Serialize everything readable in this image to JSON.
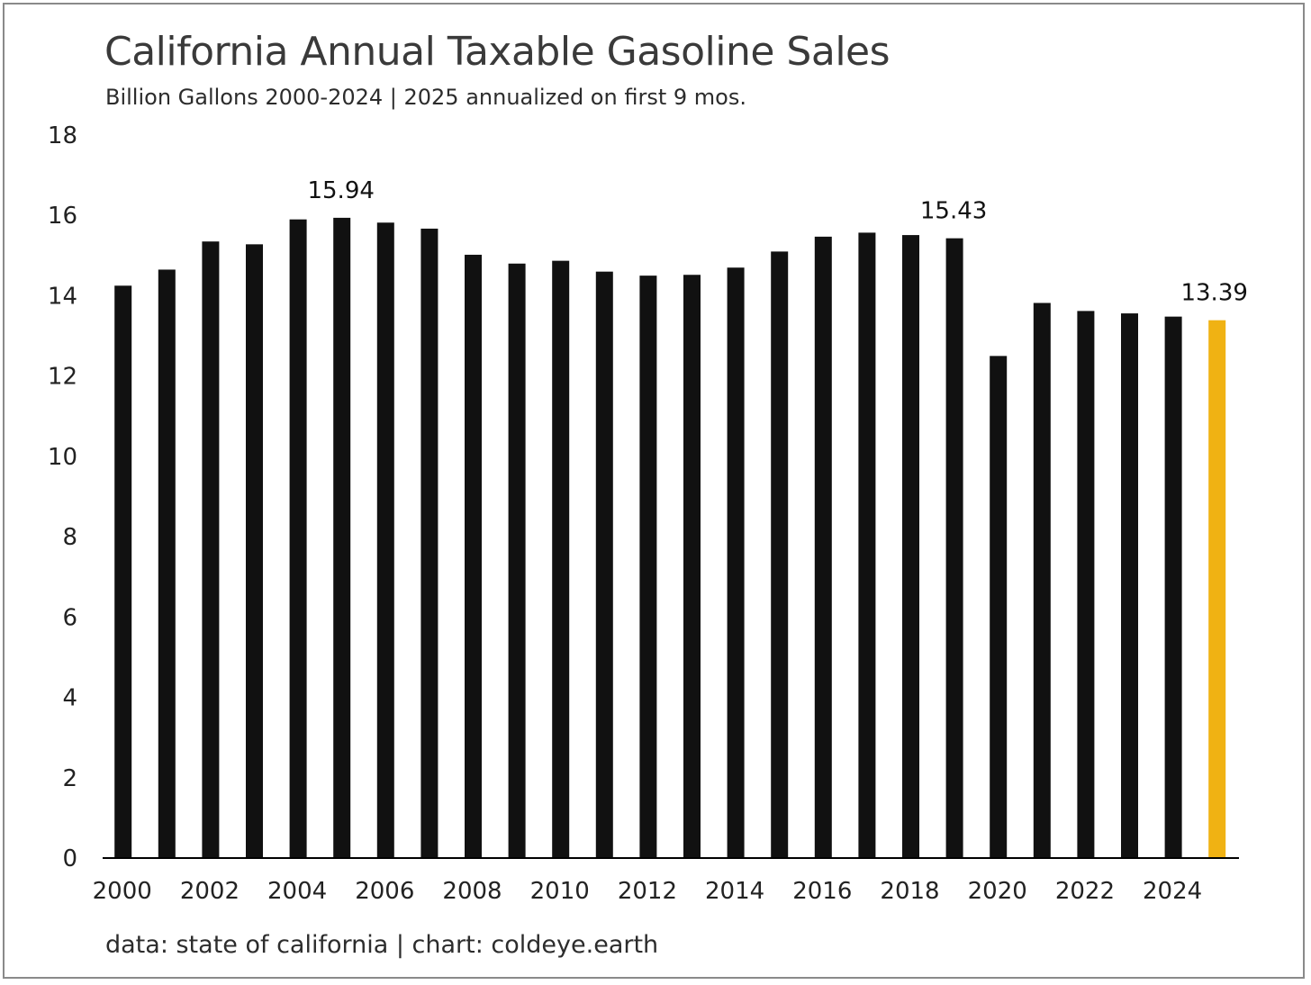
{
  "title": "California Annual Taxable Gasoline Sales",
  "subtitle": "Billion Gallons 2000-2024 | 2025 annualized on first 9 mos.",
  "footer": "data: state of california | chart: coldeye.earth",
  "colors": {
    "bar": "#111111",
    "highlight": "#f0b213",
    "axis": "#000000"
  },
  "chart_data": {
    "type": "bar",
    "title": "California Annual Taxable Gasoline Sales",
    "subtitle": "Billion Gallons 2000-2024 | 2025 annualized on first 9 mos.",
    "xlabel": "",
    "ylabel": "",
    "ylim": [
      0,
      18
    ],
    "yticks": [
      0,
      2,
      4,
      6,
      8,
      10,
      12,
      14,
      16,
      18
    ],
    "grid": false,
    "categories": [
      "2000",
      "2001",
      "2002",
      "2003",
      "2004",
      "2005",
      "2006",
      "2007",
      "2008",
      "2009",
      "2010",
      "2011",
      "2012",
      "2013",
      "2014",
      "2015",
      "2016",
      "2017",
      "2018",
      "2019",
      "2020",
      "2021",
      "2022",
      "2023",
      "2024",
      "2025"
    ],
    "xtick_labels": [
      "2000",
      "2002",
      "2004",
      "2006",
      "2008",
      "2010",
      "2012",
      "2014",
      "2016",
      "2018",
      "2020",
      "2022",
      "2024"
    ],
    "values": [
      14.25,
      14.65,
      15.35,
      15.28,
      15.9,
      15.94,
      15.82,
      15.67,
      15.02,
      14.8,
      14.87,
      14.6,
      14.5,
      14.52,
      14.7,
      15.1,
      15.47,
      15.57,
      15.51,
      15.43,
      12.5,
      13.82,
      13.62,
      13.56,
      13.48,
      13.39
    ],
    "highlight_index": 25,
    "data_labels": [
      {
        "index": 5,
        "text": "15.94"
      },
      {
        "index": 19,
        "text": "15.43"
      },
      {
        "index": 25,
        "text": "13.39"
      }
    ]
  }
}
